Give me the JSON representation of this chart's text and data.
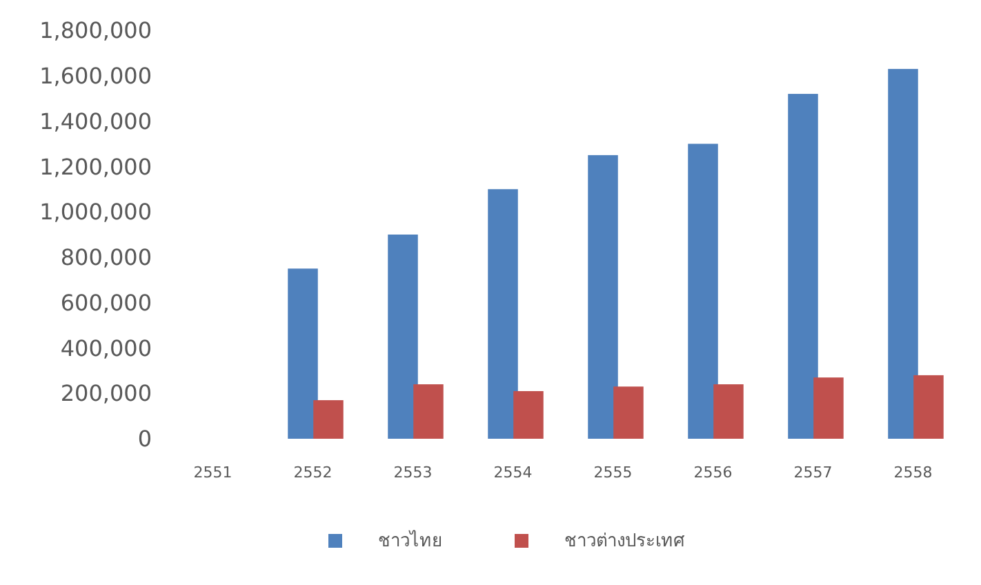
{
  "chart_data": {
    "type": "bar",
    "categories": [
      "2551",
      "2552",
      "2553",
      "2554",
      "2555",
      "2556",
      "2557",
      "2558"
    ],
    "series": [
      {
        "name": "ชาวไทย",
        "color": "#4f81bd",
        "values": [
          null,
          750000,
          900000,
          1100000,
          1250000,
          1300000,
          1520000,
          1630000
        ]
      },
      {
        "name": "ชาวต่างประเทศ",
        "color": "#c0504d",
        "values": [
          null,
          170000,
          240000,
          210000,
          230000,
          240000,
          270000,
          280000
        ]
      }
    ],
    "ylim": [
      0,
      1800000
    ],
    "yticks": [
      {
        "value": 0,
        "label": "0"
      },
      {
        "value": 200000,
        "label": "200,000"
      },
      {
        "value": 400000,
        "label": "400,000"
      },
      {
        "value": 600000,
        "label": "600,000"
      },
      {
        "value": 800000,
        "label": "800,000"
      },
      {
        "value": 1000000,
        "label": "1,000,000"
      },
      {
        "value": 1200000,
        "label": "1,200,000"
      },
      {
        "value": 1400000,
        "label": "1,400,000"
      },
      {
        "value": 1600000,
        "label": "1,600,000"
      },
      {
        "value": 1800000,
        "label": "1,800,000"
      }
    ],
    "legend": "bottom"
  }
}
